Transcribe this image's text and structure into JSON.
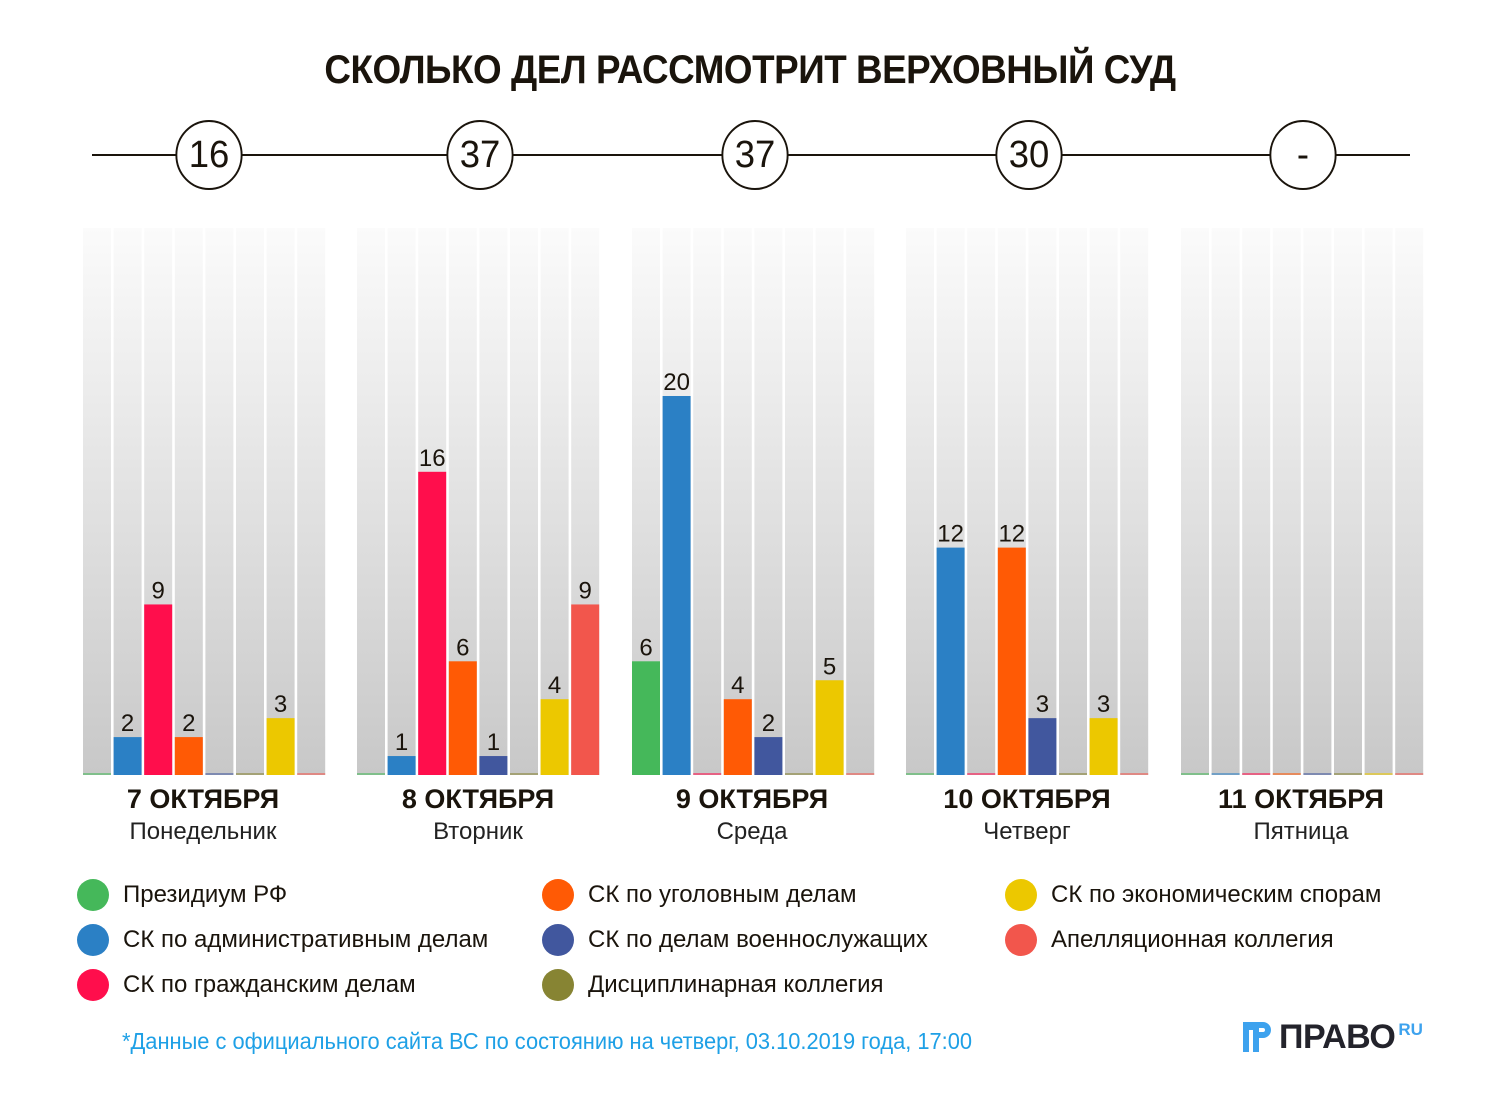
{
  "title": "СКОЛЬКО ДЕЛ РАССМОТРИТ ВЕРХОВНЫЙ СУД",
  "totals": [
    "16",
    "37",
    "37",
    "30",
    "-"
  ],
  "footnote": "*Данные с официального сайта ВС по состоянию на четверг, 03.10.2019 года, 17:00",
  "logo": {
    "text": "ПРАВО",
    "suffix": "RU",
    "icon": "pravo-logo-icon"
  },
  "chart_data": {
    "type": "bar",
    "title": "СКОЛЬКО ДЕЛ РАССМОТРИТ ВЕРХОВНЫЙ СУД",
    "xlabel": "",
    "ylabel": "",
    "ylim": [
      0,
      29
    ],
    "grid": false,
    "legend_position": "bottom",
    "categories": [
      "7 ОКТЯБРЯ",
      "8 ОКТЯБРЯ",
      "9 ОКТЯБРЯ",
      "10 ОКТЯБРЯ",
      "11 ОКТЯБРЯ"
    ],
    "weekdays": [
      "Понедельник",
      "Вторник",
      "Среда",
      "Четверг",
      "Пятница"
    ],
    "totals": [
      16,
      37,
      37,
      30,
      null
    ],
    "series": [
      {
        "name": "Президиум РФ",
        "color": "#45b85a",
        "values": [
          0,
          0,
          6,
          0,
          0
        ]
      },
      {
        "name": "СК по административным делам",
        "color": "#2b80c5",
        "values": [
          2,
          1,
          20,
          12,
          0
        ]
      },
      {
        "name": "СК по гражданским делам",
        "color": "#ff0e4c",
        "values": [
          9,
          16,
          0,
          0,
          0
        ]
      },
      {
        "name": "СК по уголовным делам",
        "color": "#ff5a05",
        "values": [
          2,
          6,
          4,
          12,
          0
        ]
      },
      {
        "name": "СК по делам военнослужащих",
        "color": "#41579e",
        "values": [
          0,
          1,
          2,
          3,
          0
        ]
      },
      {
        "name": "Дисциплинарная коллегия",
        "color": "#878433",
        "values": [
          0,
          0,
          0,
          0,
          0
        ]
      },
      {
        "name": "СК по экономическим спорам",
        "color": "#ecc800",
        "values": [
          3,
          4,
          5,
          3,
          0
        ]
      },
      {
        "name": "Апелляционная коллегия",
        "color": "#f2564c",
        "values": [
          0,
          9,
          0,
          0,
          0
        ]
      }
    ]
  },
  "legend": [
    {
      "label": "Президиум РФ",
      "color": "#45b85a"
    },
    {
      "label": "СК по административным делам",
      "color": "#2b80c5"
    },
    {
      "label": "СК по гражданским делам",
      "color": "#ff0e4c"
    },
    {
      "label": "СК по уголовным делам",
      "color": "#ff5a05"
    },
    {
      "label": "СК по делам военнослужащих",
      "color": "#41579e"
    },
    {
      "label": "Дисциплинарная коллегия",
      "color": "#878433"
    },
    {
      "label": "СК по экономическим спорам",
      "color": "#ecc800"
    },
    {
      "label": "Апелляционная коллегия",
      "color": "#f2564c"
    }
  ]
}
